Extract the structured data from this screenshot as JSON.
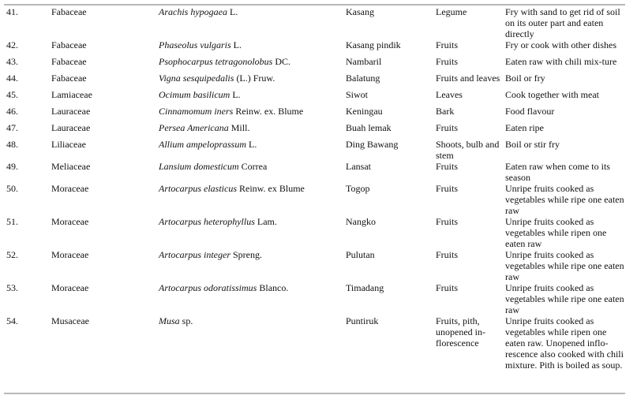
{
  "rows": [
    {
      "no": "41.",
      "family": "Fabaceae",
      "species": "Arachis hypogaea",
      "authority": " L.",
      "local": "Kasang",
      "part": "Legume",
      "use": "Fry with sand to get rid of soil on its outer part and eaten directly"
    },
    {
      "no": "42.",
      "family": "Fabaceae",
      "species": "Phaseolus vulgaris",
      "authority": " L.",
      "local": "Kasang pindik",
      "part": "Fruits",
      "use": "Fry or cook with other dishes"
    },
    {
      "no": "43.",
      "family": "Fabaceae",
      "species": "Psophocarpus tetragonolobus",
      "authority": " DC.",
      "local": "Nambaril",
      "part": "Fruits",
      "use": "Eaten raw with chili mix-ture"
    },
    {
      "no": "44.",
      "family": "Fabaceae",
      "species": "Vigna sesquipedalis",
      "authority": " (L.) Fruw.",
      "local": "Balatung",
      "part": "Fruits and leaves",
      "use": "Boil or fry"
    },
    {
      "no": "45.",
      "family": "Lamiaceae",
      "species": "Ocimum basilicum",
      "authority": " L.",
      "local": "Siwot",
      "part": "Leaves",
      "use": "Cook together with meat"
    },
    {
      "no": "46.",
      "family": "Lauraceae",
      "species": "Cinnamomum iners",
      "authority": " Reinw. ex. Blume",
      "local": "Keningau",
      "part": "Bark",
      "use": "Food flavour"
    },
    {
      "no": "47.",
      "family": "Lauraceae",
      "species": "Persea Americana",
      "authority": " Mill.",
      "local": "Buah lemak",
      "part": "Fruits",
      "use": "Eaten ripe"
    },
    {
      "no": "48.",
      "family": "Liliaceae",
      "species": "Allium ampeloprassum",
      "authority": " L.",
      "local": "Ding Bawang",
      "part": "Shoots, bulb and stem",
      "use": "Boil or stir fry"
    },
    {
      "no": "49.",
      "family": "Meliaceae",
      "species": "Lansium domesticum",
      "authority": " Correa",
      "local": "Lansat",
      "part": "Fruits",
      "use": "Eaten raw when come to its season"
    },
    {
      "no": "50.",
      "family": "Moraceae",
      "species": "Artocarpus elasticus",
      "authority": " Reinw. ex Blume",
      "local": "Togop",
      "part": "Fruits",
      "use": "Unripe fruits cooked as vegetables while ripe one eaten raw"
    },
    {
      "no": "51.",
      "family": "Moraceae",
      "species": "Artocarpus heterophyllus",
      "authority": " Lam.",
      "local": "Nangko",
      "part": "Fruits",
      "use": "Unripe fruits cooked as vegetables while ripen one eaten raw"
    },
    {
      "no": "52.",
      "family": "Moraceae",
      "species": "Artocarpus integer",
      "authority": " Spreng.",
      "local": "Pulutan",
      "part": "Fruits",
      "use": "Unripe fruits cooked as vegetables while ripe one eaten raw"
    },
    {
      "no": "53.",
      "family": "Moraceae",
      "species": "Artocarpus odoratissimus",
      "authority": " Blanco.",
      "local": "Timadang",
      "part": "Fruits",
      "use": "Unripe fruits cooked as vegetables while ripe one eaten raw"
    },
    {
      "no": "54.",
      "family": "Musaceae",
      "species": "Musa",
      "authority": " sp.",
      "local": "Puntiruk",
      "part": "Fruits, pith, unopened in-florescence",
      "use": "Unripe fruits cooked as vegetables while ripen one eaten raw. Unopened inflo-rescence also cooked with chili mixture. Pith is boiled as soup."
    }
  ]
}
